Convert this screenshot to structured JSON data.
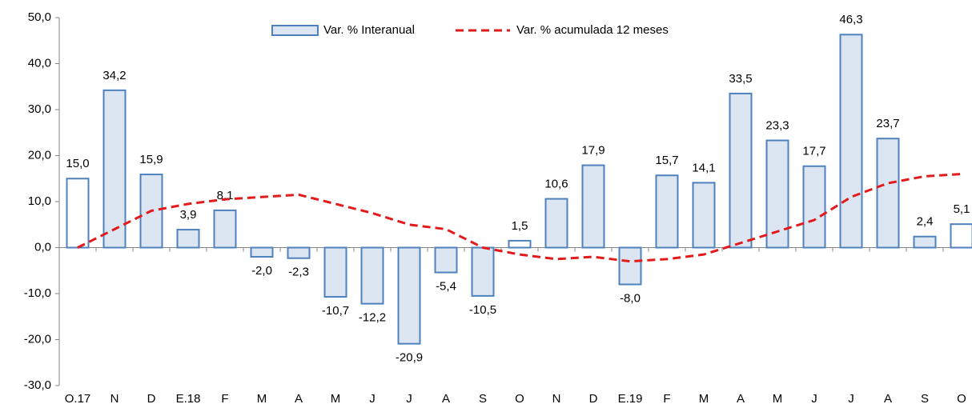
{
  "chart_data": {
    "type": "bar_line",
    "categories": [
      "O.17",
      "N",
      "D",
      "E.18",
      "F",
      "M",
      "A",
      "M",
      "J",
      "J",
      "A",
      "S",
      "O",
      "N",
      "D",
      "E.19",
      "F",
      "M",
      "A",
      "M",
      "J",
      "J",
      "A",
      "S",
      "O"
    ],
    "series": [
      {
        "name": "Var. % Interanual",
        "type": "bar",
        "color": "#dce6f2",
        "edgecolor": "#4f81bd",
        "colors": [
          "#ffffff",
          "#dce6f2",
          "#dce6f2",
          "#dce6f2",
          "#dce6f2",
          "#dce6f2",
          "#dce6f2",
          "#dce6f2",
          "#dce6f2",
          "#dce6f2",
          "#dce6f2",
          "#dce6f2",
          "#ffffff",
          "#dce6f2",
          "#dce6f2",
          "#dce6f2",
          "#dce6f2",
          "#dce6f2",
          "#dce6f2",
          "#dce6f2",
          "#dce6f2",
          "#dce6f2",
          "#dce6f2",
          "#dce6f2",
          "#ffffff"
        ],
        "values": [
          15.0,
          34.2,
          15.9,
          3.9,
          8.1,
          -2.0,
          -2.3,
          -10.7,
          -12.2,
          -20.9,
          -5.4,
          -10.5,
          1.5,
          10.6,
          17.9,
          -8.0,
          15.7,
          14.1,
          33.5,
          23.3,
          17.7,
          46.3,
          23.7,
          2.4,
          5.1
        ],
        "value_labels": [
          "15,0",
          "34,2",
          "15,9",
          "3,9",
          "8,1",
          "-2,0",
          "-2,3",
          "-10,7",
          "-12,2",
          "-20,9",
          "-5,4",
          "-10,5",
          "1,5",
          "10,6",
          "17,9",
          "-8,0",
          "15,7",
          "14,1",
          "33,5",
          "23,3",
          "17,7",
          "46,3",
          "23,7",
          "2,4",
          "5,1"
        ]
      },
      {
        "name": "Var. % acumulada 12 meses",
        "type": "line",
        "color": "#e31a1c",
        "dashed": true,
        "values": [
          0,
          4,
          8,
          9.5,
          10.5,
          11,
          11.5,
          9.5,
          7.5,
          5,
          4,
          0,
          -1.5,
          -2.5,
          -2,
          -3,
          -2.5,
          -1.5,
          1,
          3.5,
          6,
          11,
          14,
          15.5,
          16
        ]
      }
    ],
    "ylim": [
      -30,
      50
    ],
    "yticks": [
      {
        "value": -30,
        "label": "-30,0"
      },
      {
        "value": -20,
        "label": "-20,0"
      },
      {
        "value": -10,
        "label": "-10,0"
      },
      {
        "value": 0,
        "label": "0,0"
      },
      {
        "value": 10,
        "label": "10,0"
      },
      {
        "value": 20,
        "label": "20,0"
      },
      {
        "value": 30,
        "label": "30,0"
      },
      {
        "value": 40,
        "label": "40,0"
      },
      {
        "value": 50,
        "label": "50,0"
      }
    ],
    "legend": "top"
  }
}
